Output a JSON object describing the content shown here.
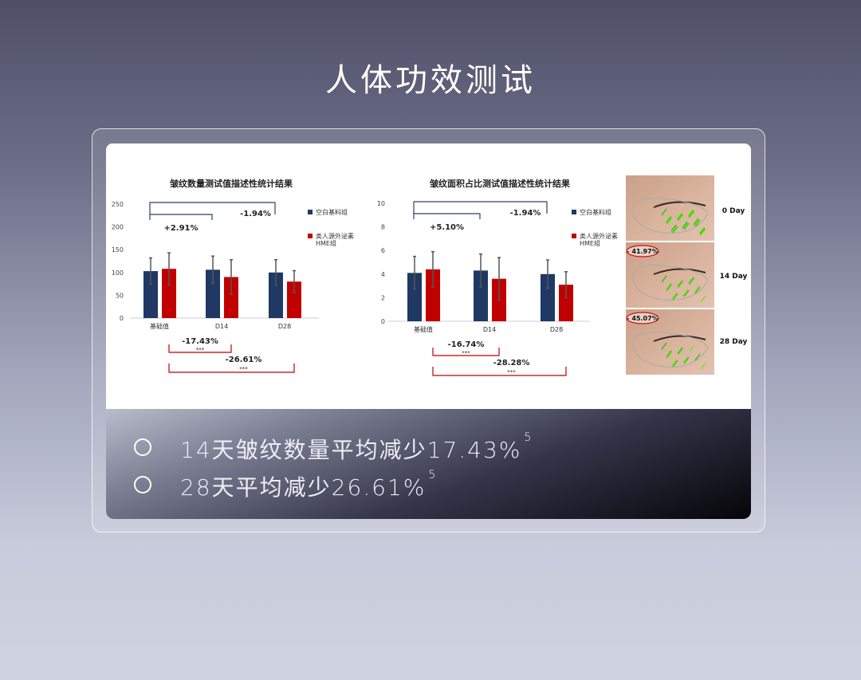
{
  "page_title": "人体功效测试",
  "chart_data": [
    {
      "type": "bar",
      "title": "皱纹数量测试值描述性统计结果",
      "categories": [
        "基础值",
        "D14",
        "D28"
      ],
      "yticks": [
        "0",
        "50",
        "100",
        "150",
        "200",
        "250"
      ],
      "ylim": [
        0,
        250
      ],
      "series": [
        {
          "name": "空白基料组",
          "color": "#1f3864",
          "values": [
            103,
            106,
            100
          ],
          "errors": [
            29,
            30,
            28
          ]
        },
        {
          "name": "类人源外泌素HME组",
          "color": "#c00000",
          "values": [
            108,
            90,
            80
          ],
          "errors": [
            35,
            38,
            24
          ]
        }
      ],
      "annotations": {
        "blue_d14": "+2.91%",
        "blue_d28": "-1.94%",
        "red_d14": "-17.43%",
        "red_d14_sig": "***",
        "red_d28": "-26.61%",
        "red_d28_sig": "***"
      }
    },
    {
      "type": "bar",
      "title": "皱纹面积占比测试值描述性统计结果",
      "categories": [
        "基础值",
        "D14",
        "D28"
      ],
      "yticks": [
        "0",
        "2",
        "4",
        "6",
        "8",
        "10"
      ],
      "ylim": [
        0,
        10
      ],
      "series": [
        {
          "name": "空白基料组",
          "color": "#1f3864",
          "values": [
            4.1,
            4.3,
            4.0
          ],
          "errors": [
            1.4,
            1.4,
            1.2
          ]
        },
        {
          "name": "类人源外泌素HME组",
          "color": "#c00000",
          "values": [
            4.4,
            3.6,
            3.1
          ],
          "errors": [
            1.5,
            1.8,
            1.1
          ]
        }
      ],
      "annotations": {
        "blue_d14": "+5.10%",
        "blue_d28": "-1.94%",
        "red_d14": "-16.74%",
        "red_d14_sig": "***",
        "red_d28": "-28.28%",
        "red_d28_sig": "***"
      }
    }
  ],
  "photos": [
    {
      "label": "0 Day",
      "change": ""
    },
    {
      "label": "14 Day",
      "change": "- 41.97%"
    },
    {
      "label": "28 Day",
      "change": "- 45.07%"
    }
  ],
  "bullets": [
    {
      "text": "14天皱纹数量平均减少17.43%",
      "sup": "5"
    },
    {
      "text": "28天平均减少26.61%",
      "sup": "5"
    }
  ]
}
